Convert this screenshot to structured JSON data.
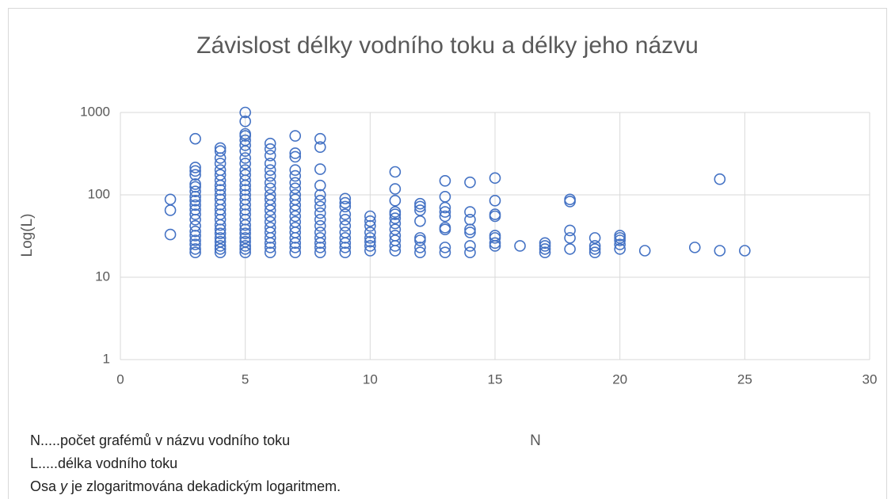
{
  "chart_data": {
    "type": "scatter",
    "title": "Závislost délky vodního toku a délky jeho názvu",
    "x_label": "N",
    "y_label": "Log(L)",
    "xlim": [
      0,
      30
    ],
    "xticks": [
      0,
      5,
      10,
      15,
      20,
      25,
      30
    ],
    "ylim": [
      1,
      1000
    ],
    "yticks": [
      1,
      10,
      100,
      1000
    ],
    "log_y": true,
    "grid": true,
    "x": [
      2,
      2,
      2,
      3,
      3,
      3,
      3,
      3,
      3,
      3,
      3,
      3,
      3,
      3,
      3,
      3,
      3,
      3,
      3,
      3,
      3,
      3,
      3,
      4,
      4,
      4,
      4,
      4,
      4,
      4,
      4,
      4,
      4,
      4,
      4,
      4,
      4,
      4,
      4,
      4,
      4,
      4,
      4,
      4,
      4,
      4,
      5,
      5,
      5,
      5,
      5,
      5,
      5,
      5,
      5,
      5,
      5,
      5,
      5,
      5,
      5,
      5,
      5,
      5,
      5,
      5,
      5,
      5,
      5,
      5,
      5,
      5,
      5,
      5,
      6,
      6,
      6,
      6,
      6,
      6,
      6,
      6,
      6,
      6,
      6,
      6,
      6,
      6,
      6,
      6,
      6,
      6,
      6,
      6,
      7,
      7,
      7,
      7,
      7,
      7,
      7,
      7,
      7,
      7,
      7,
      7,
      7,
      7,
      7,
      7,
      7,
      7,
      7,
      8,
      8,
      8,
      8,
      8,
      8,
      8,
      8,
      8,
      8,
      8,
      8,
      8,
      8,
      8,
      9,
      9,
      9,
      9,
      9,
      9,
      9,
      9,
      9,
      9,
      9,
      10,
      10,
      10,
      10,
      10,
      10,
      10,
      10,
      11,
      11,
      11,
      11,
      11,
      11,
      11,
      11,
      11,
      11,
      11,
      11,
      12,
      12,
      12,
      12,
      12,
      12,
      12,
      12,
      13,
      13,
      13,
      13,
      13,
      13,
      13,
      13,
      13,
      14,
      14,
      14,
      14,
      14,
      14,
      14,
      15,
      15,
      15,
      15,
      15,
      15,
      15,
      15,
      16,
      17,
      17,
      17,
      17,
      18,
      18,
      18,
      18,
      18,
      19,
      19,
      19,
      19,
      20,
      20,
      20,
      20,
      20,
      21,
      23,
      24,
      24,
      25
    ],
    "series": [
      {
        "name": "L",
        "color": "#4472c4",
        "values": [
          33,
          65,
          88,
          20,
          22,
          25,
          28,
          32,
          36,
          42,
          50,
          58,
          66,
          75,
          85,
          95,
          110,
          125,
          135,
          175,
          195,
          215,
          480,
          20,
          22,
          24,
          27,
          30,
          34,
          38,
          43,
          50,
          58,
          66,
          76,
          88,
          100,
          115,
          130,
          150,
          175,
          200,
          240,
          280,
          340,
          370,
          20,
          22,
          24,
          27,
          30,
          34,
          38,
          43,
          50,
          58,
          66,
          76,
          88,
          100,
          115,
          130,
          150,
          175,
          200,
          240,
          280,
          340,
          400,
          460,
          520,
          550,
          780,
          1000,
          20,
          23,
          26,
          30,
          35,
          40,
          47,
          55,
          65,
          75,
          88,
          100,
          120,
          140,
          170,
          200,
          240,
          300,
          360,
          420,
          20,
          23,
          26,
          30,
          35,
          40,
          47,
          55,
          65,
          75,
          88,
          100,
          120,
          140,
          170,
          200,
          290,
          320,
          520,
          20,
          23,
          26,
          30,
          35,
          42,
          50,
          60,
          72,
          85,
          100,
          130,
          205,
          380,
          480,
          20,
          23,
          26,
          30,
          35,
          42,
          50,
          58,
          72,
          80,
          90,
          21,
          24,
          27,
          30,
          35,
          42,
          48,
          55,
          21,
          24,
          28,
          32,
          38,
          45,
          52,
          58,
          62,
          85,
          118,
          190,
          20,
          23,
          28,
          30,
          48,
          65,
          72,
          78,
          20,
          23,
          38,
          40,
          55,
          62,
          70,
          95,
          148,
          20,
          24,
          35,
          38,
          50,
          62,
          142,
          24,
          26,
          30,
          32,
          55,
          58,
          85,
          160,
          24,
          20,
          22,
          24,
          26,
          22,
          30,
          37,
          83,
          88,
          20,
          22,
          24,
          30,
          22,
          25,
          28,
          30,
          32,
          21,
          23,
          21,
          155,
          21
        ]
      }
    ]
  },
  "notes": [
    "N.....počet grafémů v názvu vodního toku",
    "L.....délka vodního toku"
  ],
  "note_axis": {
    "before": "Osa ",
    "italic": "y",
    "after": " je zlogaritmována dekadickým logaritmem."
  }
}
